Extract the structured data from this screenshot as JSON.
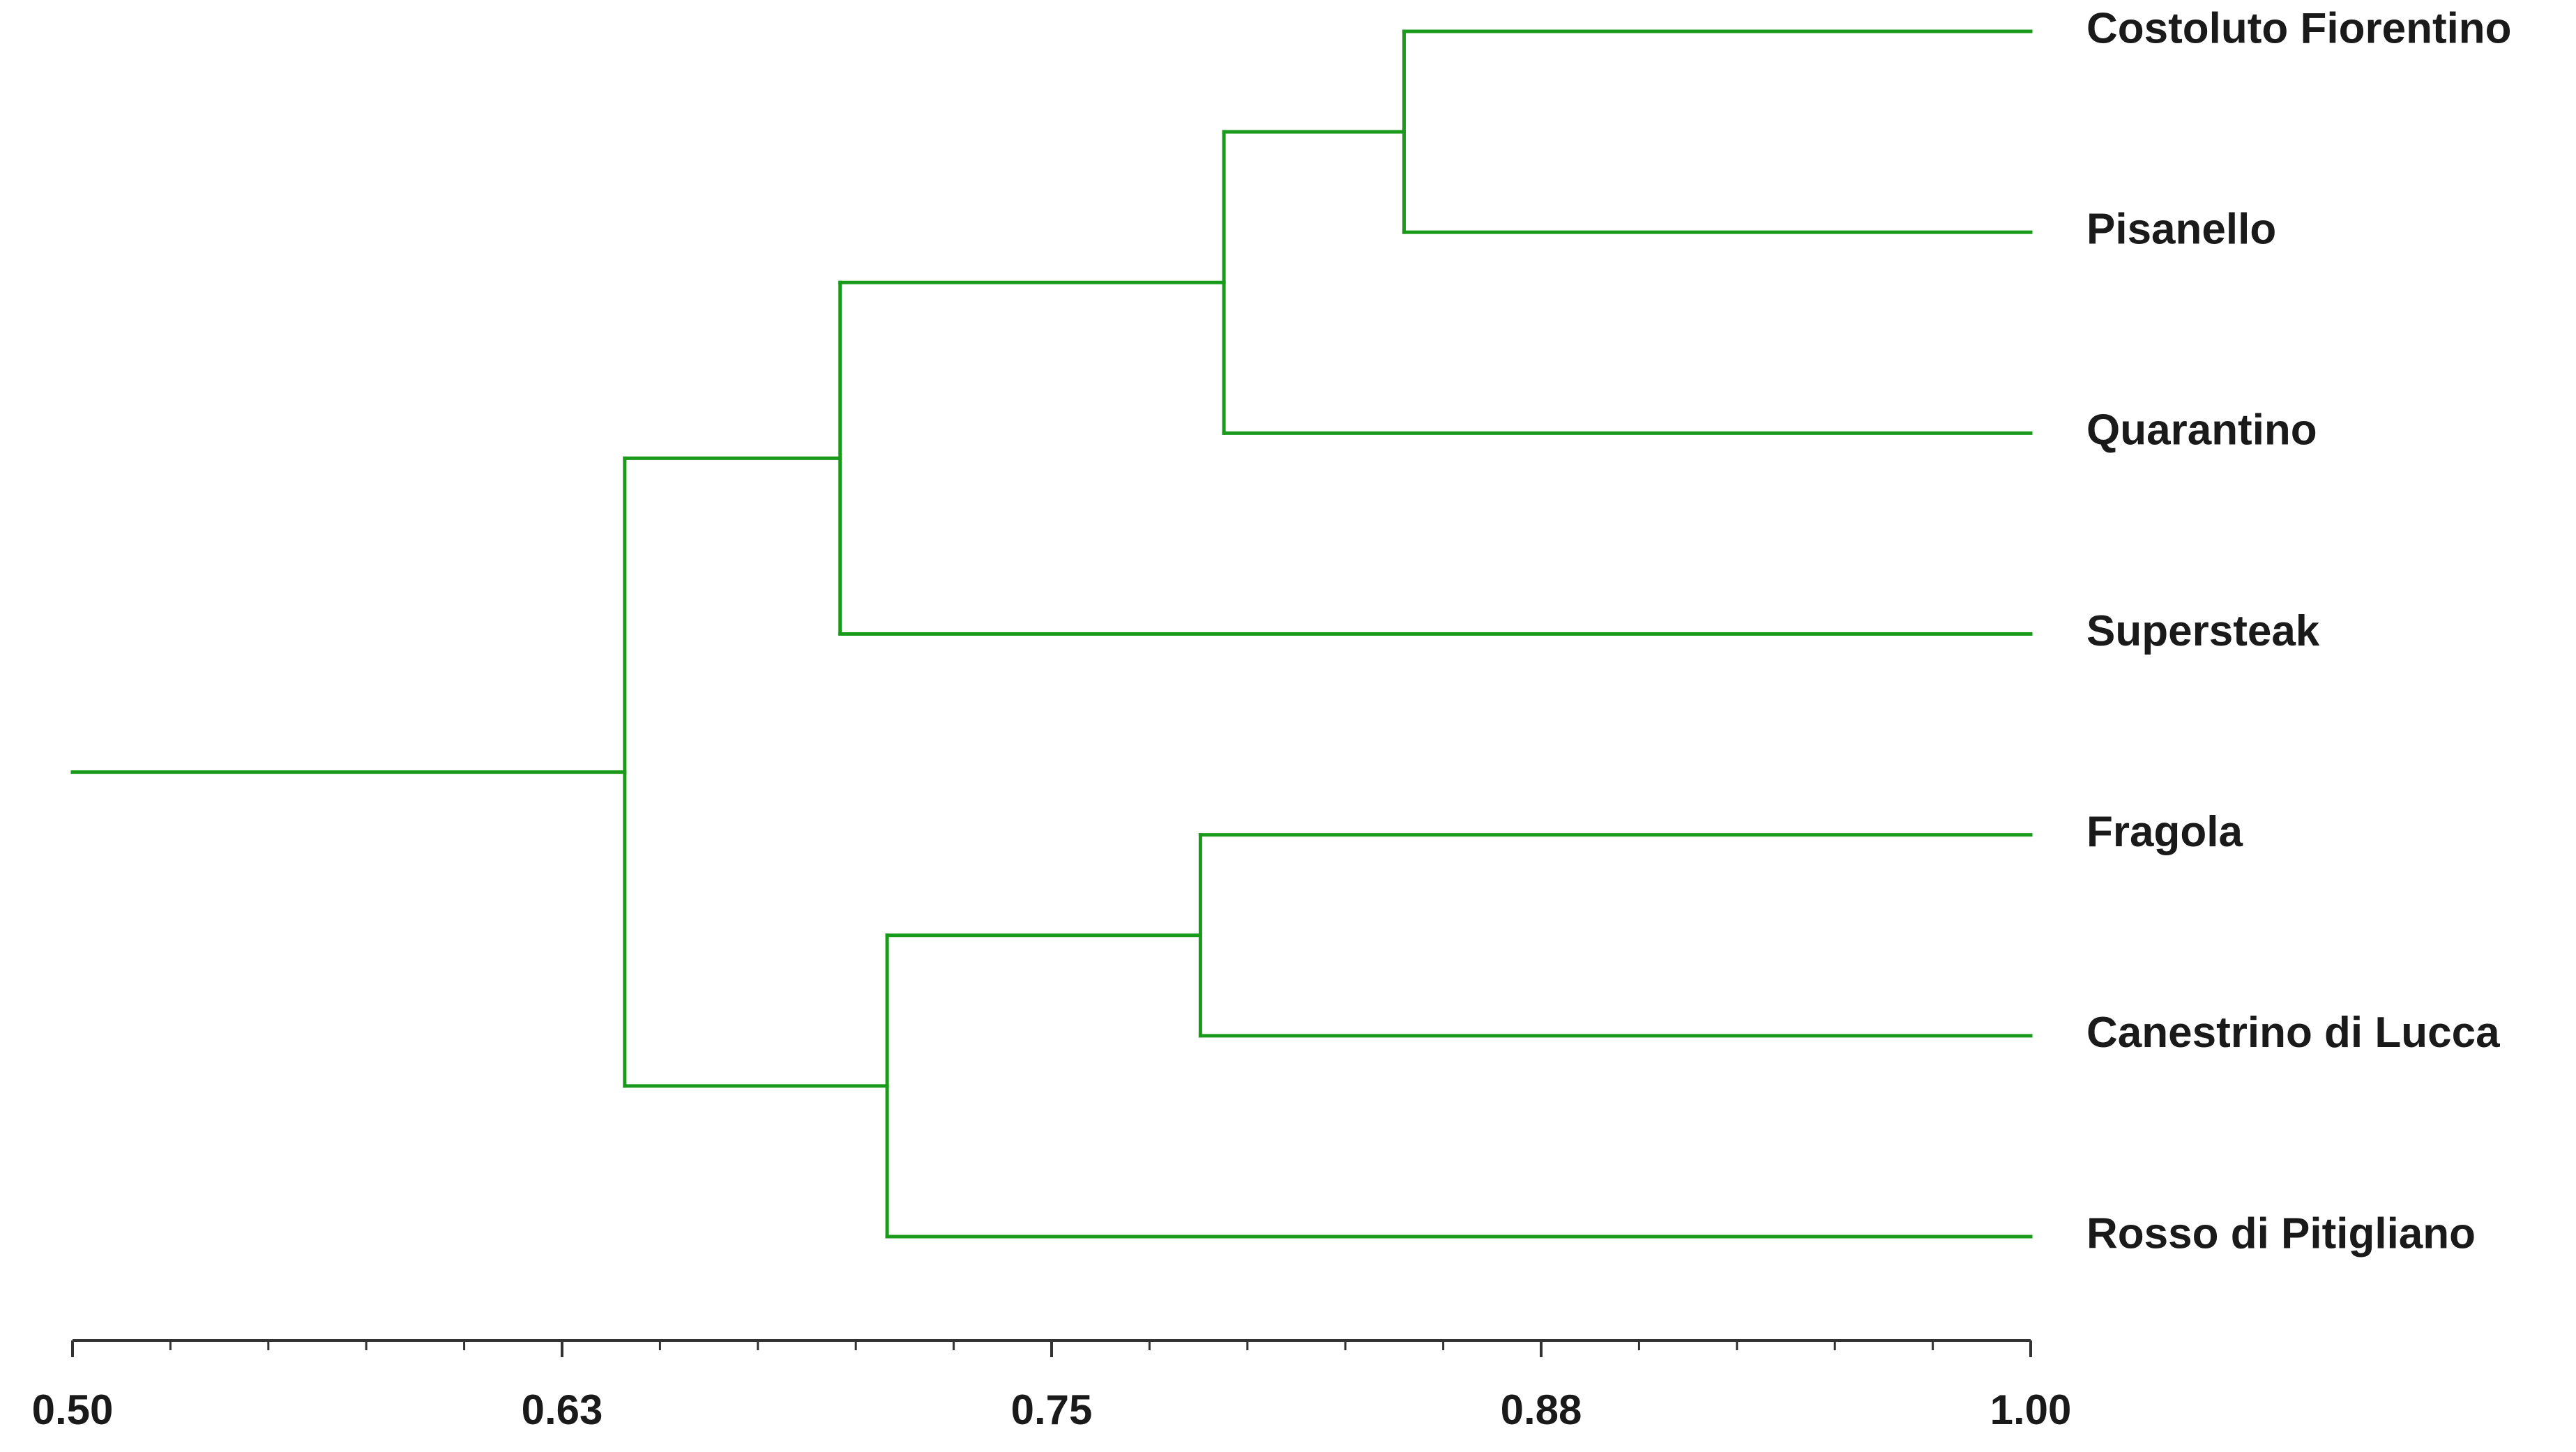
{
  "chart_data": {
    "type": "dendrogram",
    "color": "#1a9a1a",
    "leaves": [
      "Costoluto Fiorentino",
      "Pisanello",
      "Quarantino",
      "Supersteak",
      "Fragola",
      "Canestrino di Lucca",
      "Rosso di Pitigliano"
    ],
    "merges": [
      {
        "nodes": [
          0,
          1
        ],
        "value": 0.84
      },
      {
        "nodes": [
          7,
          2
        ],
        "value": 0.794
      },
      {
        "nodes": [
          8,
          3
        ],
        "value": 0.696
      },
      {
        "nodes": [
          4,
          5
        ],
        "value": 0.788
      },
      {
        "nodes": [
          10,
          6
        ],
        "value": 0.708
      },
      {
        "nodes": [
          9,
          11
        ],
        "value": 0.641
      }
    ],
    "xlim": [
      0.5,
      1
    ],
    "xticks": [
      {
        "value": 0.5,
        "label": "0.50"
      },
      {
        "value": 0.625,
        "label": "0.63"
      },
      {
        "value": 0.75,
        "label": "0.75"
      },
      {
        "value": 0.875,
        "label": "0.88"
      },
      {
        "value": 1,
        "label": "1.00"
      }
    ],
    "minor_xticks": [
      0.525,
      0.55,
      0.575,
      0.6,
      0.65,
      0.675,
      0.7,
      0.725,
      0.775,
      0.8,
      0.825,
      0.85,
      0.9,
      0.925,
      0.95,
      0.975
    ]
  }
}
